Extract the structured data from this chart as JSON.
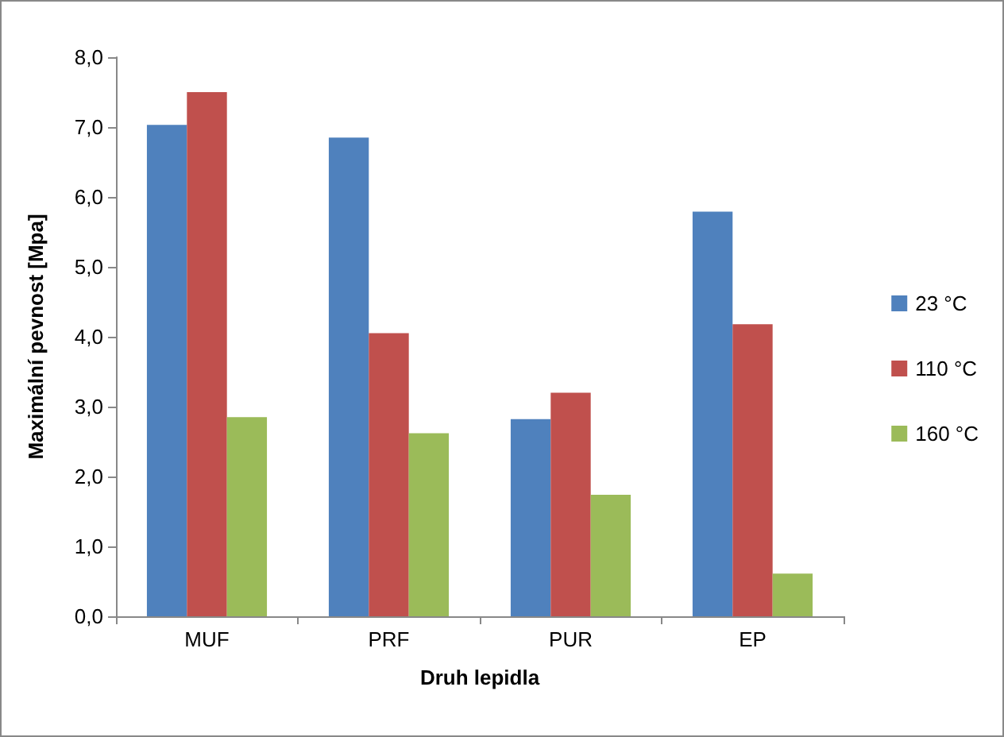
{
  "chart_data": {
    "type": "bar",
    "xlabel": "Druh lepidla",
    "ylabel": "Maximální pevnost [Mpa]",
    "categories": [
      "MUF",
      "PRF",
      "PUR",
      "EP"
    ],
    "series": [
      {
        "name": "23 °C",
        "color": "#4f81bd",
        "values": [
          7.03,
          6.85,
          2.82,
          5.79
        ]
      },
      {
        "name": "110 °C",
        "color": "#c0504d",
        "values": [
          7.5,
          4.05,
          3.2,
          4.18
        ]
      },
      {
        "name": "160 °C",
        "color": "#9bbb59",
        "values": [
          2.85,
          2.62,
          1.74,
          0.61
        ]
      }
    ],
    "ylim": [
      0,
      8
    ],
    "yticks": [
      {
        "value": 0,
        "label": "0,0"
      },
      {
        "value": 1,
        "label": "1,0"
      },
      {
        "value": 2,
        "label": "2,0"
      },
      {
        "value": 3,
        "label": "3,0"
      },
      {
        "value": 4,
        "label": "4,0"
      },
      {
        "value": 5,
        "label": "5,0"
      },
      {
        "value": 6,
        "label": "6,0"
      },
      {
        "value": 7,
        "label": "7,0"
      },
      {
        "value": 8,
        "label": "8,0"
      }
    ],
    "grid": false,
    "legend": "right"
  }
}
